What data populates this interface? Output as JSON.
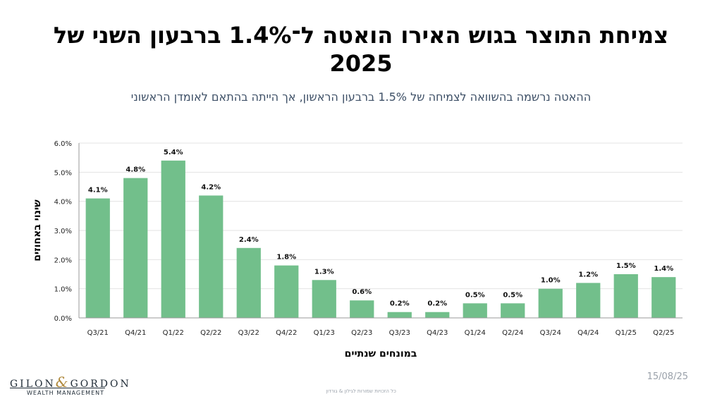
{
  "header": {
    "title": "צמיחת התוצר בגוש האירו הואטה ל־1.4% ברבעון השני של 2025",
    "subtitle": "ההאטה נרשמה בהשוואה לצמיחה של 1.5% ברבעון הראשון, אך הייתה בהתאם לאומדן הראשוני"
  },
  "chart_data": {
    "type": "bar",
    "categories": [
      "Q3/21",
      "Q4/21",
      "Q1/22",
      "Q2/22",
      "Q3/22",
      "Q4/22",
      "Q1/23",
      "Q2/23",
      "Q3/23",
      "Q4/23",
      "Q1/24",
      "Q2/24",
      "Q3/24",
      "Q4/24",
      "Q1/25",
      "Q2/25"
    ],
    "values": [
      4.1,
      4.8,
      5.4,
      4.2,
      2.4,
      1.8,
      1.3,
      0.6,
      0.2,
      0.2,
      0.5,
      0.5,
      1.0,
      1.2,
      1.5,
      1.4
    ],
    "data_labels": [
      "4.1%",
      "4.8%",
      "5.4%",
      "4.2%",
      "2.4%",
      "1.8%",
      "1.3%",
      "0.6%",
      "0.2%",
      "0.2%",
      "0.5%",
      "0.5%",
      "1.0%",
      "1.2%",
      "1.5%",
      "1.4%"
    ],
    "yticks": [
      0,
      1,
      2,
      3,
      4,
      5,
      6
    ],
    "ytick_labels": [
      "0.0%",
      "1.0%",
      "2.0%",
      "3.0%",
      "4.0%",
      "5.0%",
      "6.0%"
    ],
    "ylim": [
      0,
      6
    ],
    "xlabel": "במונחים שנתיים",
    "ylabel": "שינוי באחוזים",
    "grid": true,
    "bar_color": "#72bf8b"
  },
  "branding": {
    "logo_left": "GILON",
    "logo_amp": "&",
    "logo_right": "GORDON",
    "logo_tagline": "WEALTH MANAGEMENT",
    "footer_note": "כל הזכויות שמורות לגילון & גורדון"
  },
  "date": "15/08/25"
}
